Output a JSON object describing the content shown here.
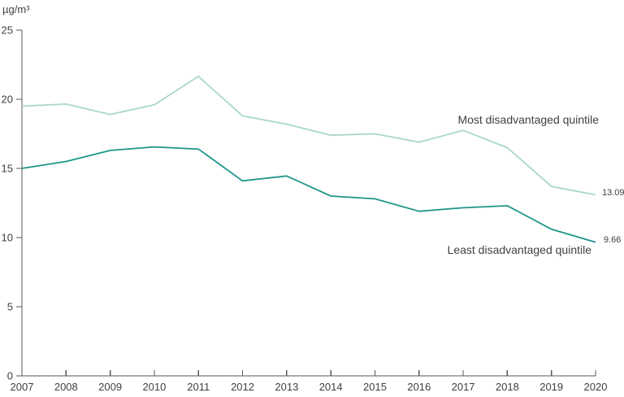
{
  "chart_data": {
    "type": "line",
    "title": "",
    "ylabel": "µg/m³",
    "xlabel": "",
    "x": [
      2007,
      2008,
      2009,
      2010,
      2011,
      2012,
      2013,
      2014,
      2015,
      2016,
      2017,
      2018,
      2019,
      2020
    ],
    "ylim": [
      0,
      25
    ],
    "yticks": [
      0,
      5,
      10,
      15,
      20,
      25
    ],
    "grid": false,
    "legend_position": "inline-right-of-lines",
    "axis_color": "#595959",
    "text_color": "#404040",
    "series": [
      {
        "name": "Most disadvantaged quintile",
        "color": "#a9d8c7",
        "values": [
          19.5,
          19.65,
          18.9,
          19.6,
          21.65,
          18.8,
          18.2,
          17.4,
          17.5,
          16.9,
          17.75,
          16.5,
          13.7,
          13.09
        ],
        "end_label": "13.09"
      },
      {
        "name": "Least disadvantaged quintile",
        "color": "#1e968a",
        "values": [
          15.0,
          15.5,
          16.3,
          16.55,
          16.4,
          14.1,
          14.45,
          13.0,
          12.8,
          11.9,
          12.15,
          12.3,
          10.6,
          9.66
        ],
        "end_label": "9.66"
      }
    ]
  }
}
